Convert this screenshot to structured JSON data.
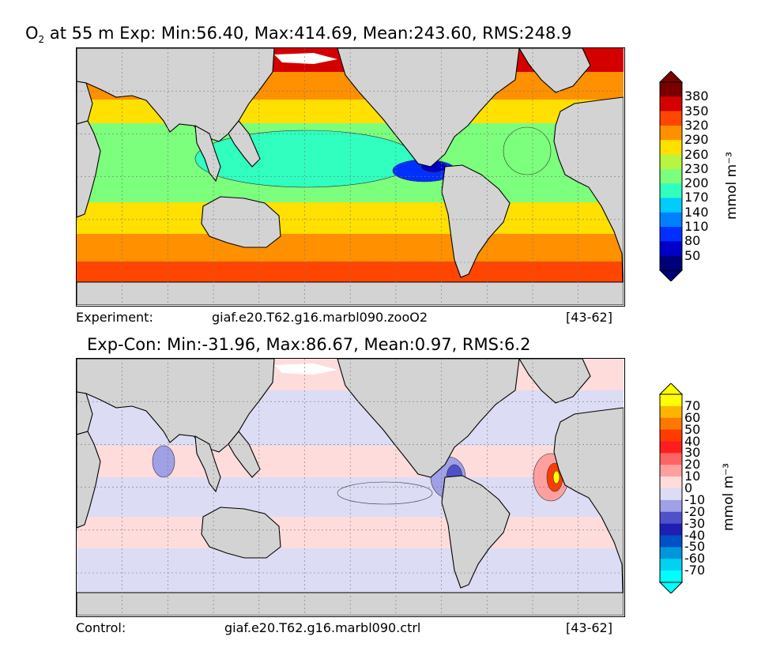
{
  "panel_top": {
    "title_var": "O",
    "title_sub": "2",
    "title_rest": " at 55 m Exp: Min:56.40, Max:414.69, Mean:243.60, RMS:248.9",
    "caption_left": "Experiment:",
    "caption_mid": "giaf.e20.T62.g16.marbl090.zooO2",
    "caption_right": "[43-62]",
    "units": "mmol m⁻³",
    "levels": [
      "380",
      "350",
      "320",
      "290",
      "260",
      "230",
      "200",
      "170",
      "140",
      "110",
      "80",
      "50"
    ],
    "colors": [
      "#7a0000",
      "#d40000",
      "#ff4500",
      "#ff9000",
      "#ffe000",
      "#b8f540",
      "#7cff7c",
      "#30ffc0",
      "#00ccff",
      "#0080ff",
      "#0030ff",
      "#0000c8",
      "#00007a"
    ],
    "regions": {
      "polar": "#ff4500",
      "south_band": "#ff9000",
      "mid_south": "#ffe000",
      "equatorial": "#7cff7c",
      "tropical_core": "#30ffc0",
      "north_pacific": "#ff9000",
      "north_subtropic": "#ffe000",
      "arctic": "#d40000",
      "omz": "#0030ff",
      "omz_core": "#0000c8"
    }
  },
  "panel_bottom": {
    "title": "Exp-Con: Min:-31.96, Max:86.67, Mean:0.97, RMS:6.2",
    "caption_left": "Control:",
    "caption_mid": "giaf.e20.T62.g16.marbl090.ctrl",
    "caption_right": "[43-62]",
    "units": "mmol m⁻³",
    "levels": [
      "70",
      "60",
      "50",
      "40",
      "30",
      "20",
      "10",
      "0",
      "-10",
      "-20",
      "-30",
      "-40",
      "-50",
      "-60",
      "-70"
    ],
    "colors": [
      "#ffff00",
      "#ffb400",
      "#ff7800",
      "#ff3c00",
      "#ff1e1e",
      "#ff6464",
      "#ffa0a0",
      "#ffdcdc",
      "#dcdcf5",
      "#a0a0e6",
      "#5050c8",
      "#1e1eb4",
      "#0050c8",
      "#0096dc",
      "#00d2f0",
      "#00ffff"
    ],
    "regions": {
      "positive_small": "#ffdcdc",
      "negative_small": "#dcdcf5",
      "pos_medium": "#ffa0a0",
      "pos_high": "#ff3c00",
      "pos_peak": "#ffff00",
      "neg_medium": "#a0a0e6",
      "neg_high": "#5050c8"
    }
  },
  "map_style": {
    "land": "#d3d3d3",
    "coast": "#000000",
    "grid": "#777777"
  }
}
